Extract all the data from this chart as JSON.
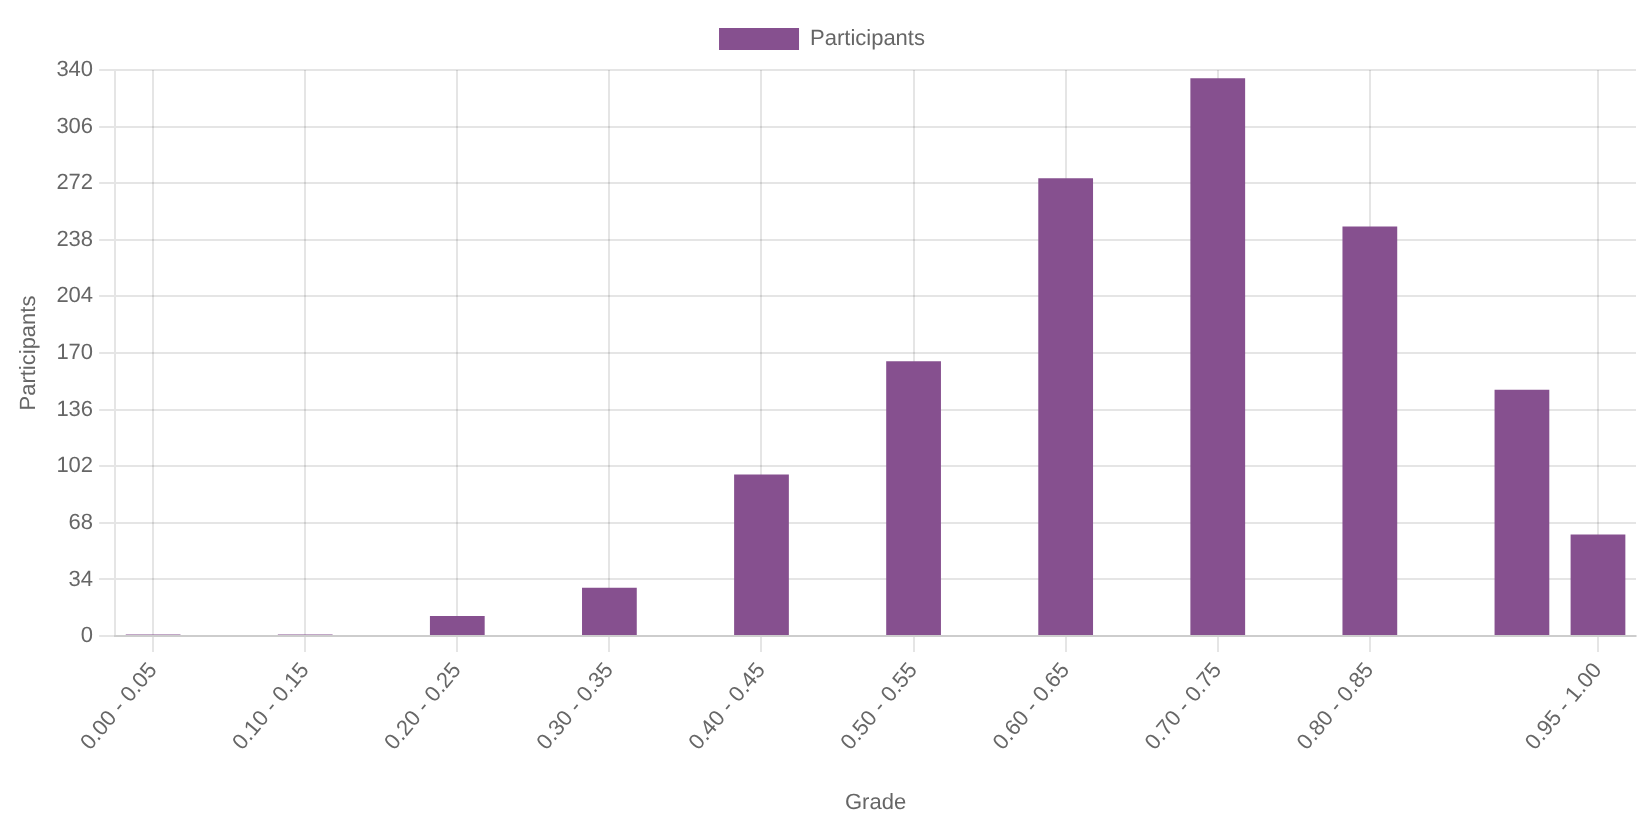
{
  "chart_data": {
    "type": "bar",
    "xlabel": "Grade",
    "ylabel": "Participants",
    "legend": "top",
    "grid": true,
    "categories": [
      "0.00 - 0.05",
      null,
      "0.10 - 0.15",
      null,
      "0.20 - 0.25",
      null,
      "0.30 - 0.35",
      null,
      "0.40 - 0.45",
      null,
      "0.50 - 0.55",
      null,
      "0.60 - 0.65",
      null,
      "0.70 - 0.75",
      null,
      "0.80 - 0.85",
      null,
      null,
      "0.95 - 1.00"
    ],
    "series": [
      {
        "name": "Participants",
        "color": "#86508f",
        "values": [
          1,
          0,
          1,
          0,
          12,
          0,
          29,
          0,
          97,
          0,
          165,
          0,
          275,
          0,
          335,
          0,
          246,
          0,
          148,
          61
        ]
      }
    ],
    "ylim": [
      0,
      340
    ],
    "yticks": [
      0,
      34,
      68,
      102,
      136,
      170,
      204,
      238,
      272,
      306,
      340
    ]
  }
}
